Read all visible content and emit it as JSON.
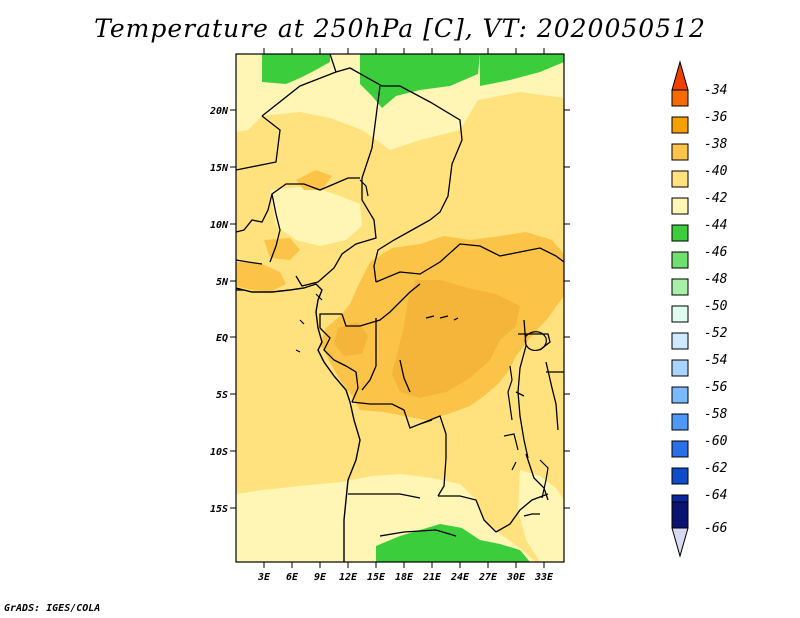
{
  "title": "Temperature at 250hPa [C], VT: 2020050512",
  "credit": "GrADS: IGES/COLA",
  "map": {
    "lat_labels": [
      "20N",
      "15N",
      "10N",
      "5N",
      "EQ",
      "5S",
      "10S",
      "15S"
    ],
    "lon_labels": [
      "3E",
      "6E",
      "9E",
      "12E",
      "15E",
      "18E",
      "21E",
      "24E",
      "27E",
      "30E",
      "33E"
    ],
    "colors": {
      "c_44_42": "#fff5b4",
      "c_42_40": "#ffe27e",
      "c_40_38": "#fcc349",
      "c_38_36": "#f6a000",
      "c_46_44": "#3ccd3c"
    }
  },
  "colorbar": {
    "levels": [
      "-34",
      "-36",
      "-38",
      "-40",
      "-42",
      "-44",
      "-46",
      "-48",
      "-50",
      "-52",
      "-54",
      "-56",
      "-58",
      "-60",
      "-62",
      "-64",
      "-66"
    ],
    "colors": [
      "#f04000",
      "#f66b00",
      "#f6a000",
      "#fcc349",
      "#ffe27e",
      "#fff5b4",
      "#3ccd3c",
      "#6fe06f",
      "#a8f0a8",
      "#e0fcf0",
      "#cfeaff",
      "#a6d4ff",
      "#7ab8ff",
      "#4f97f5",
      "#2a6fe8",
      "#0f4cc9",
      "#0a28a0",
      "#0a1470"
    ]
  }
}
